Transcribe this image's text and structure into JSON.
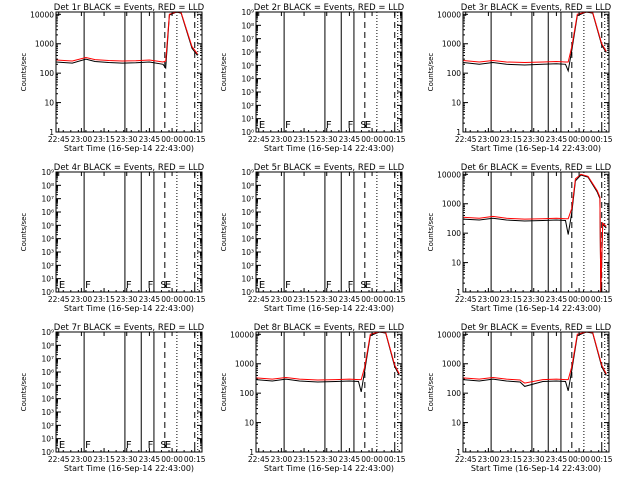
{
  "figure": {
    "background": "#ffffff",
    "axis_color": "#000000",
    "events_color": "#000000",
    "lld_color": "#ff0000"
  },
  "chart_data": [
    {
      "type": "line",
      "title": "Det 1r BLACK = Events, RED = LLD",
      "xlabel": "Start Time (16-Sep-14 22:43:00)",
      "ylabel": "Counts/sec",
      "yscale": "log",
      "ylim": [
        1,
        12000
      ],
      "xlim": [
        22.72,
        24.33
      ],
      "xticks": [
        22.75,
        23.0,
        23.25,
        23.5,
        23.75,
        24.0,
        24.25
      ],
      "xticklabels": [
        "22:45",
        "23:00",
        "23:15",
        "23:30",
        "23:45",
        "00:00",
        "00:15"
      ],
      "yticks": [
        1,
        10,
        100,
        1000,
        10000
      ],
      "yticklabels": [
        "1",
        "10",
        "100",
        "1000",
        "10000"
      ],
      "solid_lines": [
        23.03,
        23.48,
        23.66,
        23.8
      ],
      "dashed_lines": [
        23.92,
        24.25
      ],
      "dotted_lines": [
        24.02,
        24.25
      ],
      "markers": [],
      "series": [
        {
          "role": "events",
          "x": [
            22.72,
            22.9,
            23.05,
            23.15,
            23.3,
            23.45,
            23.6,
            23.75,
            23.9,
            23.93,
            23.97,
            24.05,
            24.1,
            24.22,
            24.28
          ],
          "y": [
            240,
            220,
            300,
            250,
            230,
            220,
            225,
            240,
            200,
            150,
            9500,
            12000,
            11000,
            700,
            400
          ]
        },
        {
          "role": "lld",
          "x": [
            22.72,
            22.9,
            23.05,
            23.15,
            23.3,
            23.45,
            23.6,
            23.75,
            23.9,
            23.93,
            23.97,
            24.05,
            24.1,
            24.22,
            24.28
          ],
          "y": [
            280,
            260,
            340,
            290,
            270,
            260,
            265,
            280,
            240,
            260,
            10000,
            12000,
            11500,
            800,
            450
          ]
        }
      ]
    },
    {
      "type": "line",
      "title": "Det 2r BLACK = Events, RED = LLD",
      "xlabel": "Start Time (16-Sep-14 22:43:00)",
      "ylabel": "Counts/sec",
      "yscale": "log",
      "ylim": [
        1,
        1000000000
      ],
      "xlim": [
        22.72,
        24.33
      ],
      "xticks": [
        22.75,
        23.0,
        23.25,
        23.5,
        23.75,
        24.0,
        24.25
      ],
      "xticklabels": [
        "22:45",
        "23:00",
        "23:15",
        "23:30",
        "23:45",
        "00:00",
        "00:15"
      ],
      "yticks": [
        1,
        10,
        100,
        1000,
        10000,
        100000,
        1000000,
        10000000,
        100000000,
        1000000000
      ],
      "yticklabels": [
        "10⁰",
        "10¹",
        "10²",
        "10³",
        "10⁴",
        "10⁵",
        "10⁶",
        "10⁷",
        "10⁸",
        "10⁹"
      ],
      "solid_lines": [
        23.03,
        23.48,
        23.66,
        23.8
      ],
      "dashed_lines": [
        23.92,
        24.25
      ],
      "dotted_lines": [
        24.02,
        24.25
      ],
      "markers": [
        {
          "x": 22.74,
          "text": "E"
        },
        {
          "x": 23.03,
          "text": "F"
        },
        {
          "x": 23.48,
          "text": "F"
        },
        {
          "x": 23.72,
          "text": "F"
        },
        {
          "x": 23.86,
          "text": "S"
        },
        {
          "x": 23.91,
          "text": "E"
        }
      ],
      "series": []
    },
    {
      "type": "line",
      "title": "Det 3r BLACK = Events, RED = LLD",
      "xlabel": "Start Time (16-Sep-14 22:43:00)",
      "ylabel": "Counts/sec",
      "yscale": "log",
      "ylim": [
        1,
        12000
      ],
      "xlim": [
        22.72,
        24.33
      ],
      "xticks": [
        22.75,
        23.0,
        23.25,
        23.5,
        23.75,
        24.0,
        24.25
      ],
      "xticklabels": [
        "22:45",
        "23:00",
        "23:15",
        "23:30",
        "23:45",
        "00:00",
        "00:15"
      ],
      "yticks": [
        1,
        10,
        100,
        1000,
        10000
      ],
      "yticklabels": [
        "1",
        "10",
        "100",
        "1000",
        "10000"
      ],
      "solid_lines": [
        23.03,
        23.48,
        23.66,
        23.8
      ],
      "dashed_lines": [
        23.92,
        24.25
      ],
      "dotted_lines": [
        24.02,
        24.25
      ],
      "markers": [],
      "series": [
        {
          "role": "events",
          "x": [
            22.72,
            22.9,
            23.05,
            23.2,
            23.4,
            23.6,
            23.75,
            23.85,
            23.88,
            23.92,
            23.98,
            24.08,
            24.15,
            24.25,
            24.3
          ],
          "y": [
            230,
            200,
            230,
            200,
            190,
            200,
            210,
            200,
            120,
            600,
            9000,
            12000,
            11000,
            900,
            500
          ]
        },
        {
          "role": "lld",
          "x": [
            22.72,
            22.9,
            23.05,
            23.2,
            23.4,
            23.6,
            23.75,
            23.85,
            23.88,
            23.92,
            23.98,
            24.08,
            24.15,
            24.25,
            24.3
          ],
          "y": [
            270,
            240,
            270,
            240,
            230,
            240,
            250,
            240,
            240,
            800,
            10000,
            12000,
            11500,
            1000,
            550
          ]
        }
      ]
    },
    {
      "type": "line",
      "title": "Det 4r BLACK = Events, RED = LLD",
      "xlabel": "Start Time (16-Sep-14 22:43:00)",
      "ylabel": "Counts/sec",
      "yscale": "log",
      "ylim": [
        1,
        1000000000
      ],
      "xlim": [
        22.72,
        24.33
      ],
      "xticks": [
        22.75,
        23.0,
        23.25,
        23.5,
        23.75,
        24.0,
        24.25
      ],
      "xticklabels": [
        "22:45",
        "23:00",
        "23:15",
        "23:30",
        "23:45",
        "00:00",
        "00:15"
      ],
      "yticks": [
        1,
        10,
        100,
        1000,
        10000,
        100000,
        1000000,
        10000000,
        100000000,
        1000000000
      ],
      "yticklabels": [
        "10⁰",
        "10¹",
        "10²",
        "10³",
        "10⁴",
        "10⁵",
        "10⁶",
        "10⁷",
        "10⁸",
        "10⁹"
      ],
      "solid_lines": [
        23.03,
        23.48,
        23.66,
        23.8
      ],
      "dashed_lines": [
        23.92,
        24.25
      ],
      "dotted_lines": [
        24.02,
        24.25
      ],
      "markers": [
        {
          "x": 22.74,
          "text": "E"
        },
        {
          "x": 23.03,
          "text": "F"
        },
        {
          "x": 23.48,
          "text": "F"
        },
        {
          "x": 23.72,
          "text": "F"
        },
        {
          "x": 23.86,
          "text": "S"
        },
        {
          "x": 23.91,
          "text": "E"
        }
      ],
      "series": []
    },
    {
      "type": "line",
      "title": "Det 5r BLACK = Events, RED = LLD",
      "xlabel": "Start Time (16-Sep-14 22:43:00)",
      "ylabel": "Counts/sec",
      "yscale": "log",
      "ylim": [
        1,
        1000000000
      ],
      "xlim": [
        22.72,
        24.33
      ],
      "xticks": [
        22.75,
        23.0,
        23.25,
        23.5,
        23.75,
        24.0,
        24.25
      ],
      "xticklabels": [
        "22:45",
        "23:00",
        "23:15",
        "23:30",
        "23:45",
        "00:00",
        "00:15"
      ],
      "yticks": [
        1,
        10,
        100,
        1000,
        10000,
        100000,
        1000000,
        10000000,
        100000000,
        1000000000
      ],
      "yticklabels": [
        "10⁰",
        "10¹",
        "10²",
        "10³",
        "10⁴",
        "10⁵",
        "10⁶",
        "10⁷",
        "10⁸",
        "10⁹"
      ],
      "solid_lines": [
        23.03,
        23.48,
        23.66,
        23.8
      ],
      "dashed_lines": [
        23.92,
        24.25
      ],
      "dotted_lines": [
        24.02,
        24.25
      ],
      "markers": [
        {
          "x": 22.74,
          "text": "E"
        },
        {
          "x": 23.03,
          "text": "F"
        },
        {
          "x": 23.48,
          "text": "F"
        },
        {
          "x": 23.72,
          "text": "F"
        },
        {
          "x": 23.86,
          "text": "S"
        },
        {
          "x": 23.91,
          "text": "E"
        }
      ],
      "series": []
    },
    {
      "type": "line",
      "title": "Det 6r BLACK = Events, RED = LLD",
      "xlabel": "Start Time (16-Sep-14 22:43:00)",
      "ylabel": "Counts/sec",
      "yscale": "log",
      "ylim": [
        1,
        12000
      ],
      "xlim": [
        22.72,
        24.33
      ],
      "xticks": [
        22.75,
        23.0,
        23.25,
        23.5,
        23.75,
        24.0,
        24.25
      ],
      "xticklabels": [
        "22:45",
        "23:00",
        "23:15",
        "23:30",
        "23:45",
        "00:00",
        "00:15"
      ],
      "yticks": [
        1,
        10,
        100,
        1000,
        10000
      ],
      "yticklabels": [
        "1",
        "10",
        "100",
        "1000",
        "10000"
      ],
      "solid_lines": [
        23.03,
        23.48,
        23.66,
        23.8
      ],
      "dashed_lines": [
        23.92,
        24.25
      ],
      "dotted_lines": [
        24.02,
        24.25
      ],
      "markers": [],
      "series": [
        {
          "role": "events",
          "x": [
            22.72,
            22.9,
            23.05,
            23.2,
            23.4,
            23.6,
            23.75,
            23.85,
            23.88,
            23.92,
            23.96,
            24.02,
            24.1,
            24.2,
            24.23,
            24.24,
            24.26,
            24.3
          ],
          "y": [
            300,
            280,
            320,
            280,
            260,
            270,
            280,
            270,
            90,
            500,
            6000,
            9500,
            8000,
            2500,
            1500,
            1,
            200,
            150
          ]
        },
        {
          "role": "lld",
          "x": [
            22.72,
            22.9,
            23.05,
            23.2,
            23.4,
            23.6,
            23.75,
            23.85,
            23.88,
            23.92,
            23.96,
            24.02,
            24.1,
            24.2,
            24.23,
            24.24,
            24.26,
            24.3
          ],
          "y": [
            350,
            320,
            370,
            320,
            300,
            310,
            320,
            310,
            310,
            700,
            7000,
            10000,
            8500,
            2800,
            1700,
            1,
            220,
            170
          ]
        }
      ]
    },
    {
      "type": "line",
      "title": "Det 7r BLACK = Events, RED = LLD",
      "xlabel": "Start Time (16-Sep-14 22:43:00)",
      "ylabel": "Counts/sec",
      "yscale": "log",
      "ylim": [
        1,
        1000000000
      ],
      "xlim": [
        22.72,
        24.33
      ],
      "xticks": [
        22.75,
        23.0,
        23.25,
        23.5,
        23.75,
        24.0,
        24.25
      ],
      "xticklabels": [
        "22:45",
        "23:00",
        "23:15",
        "23:30",
        "23:45",
        "00:00",
        "00:15"
      ],
      "yticks": [
        1,
        10,
        100,
        1000,
        10000,
        100000,
        1000000,
        10000000,
        100000000,
        1000000000
      ],
      "yticklabels": [
        "10⁰",
        "10¹",
        "10²",
        "10³",
        "10⁴",
        "10⁵",
        "10⁶",
        "10⁷",
        "10⁸",
        "10⁹"
      ],
      "solid_lines": [
        23.03,
        23.48,
        23.66,
        23.8
      ],
      "dashed_lines": [
        23.92,
        24.25
      ],
      "dotted_lines": [
        24.02,
        24.25
      ],
      "markers": [
        {
          "x": 22.74,
          "text": "E"
        },
        {
          "x": 23.03,
          "text": "F"
        },
        {
          "x": 23.48,
          "text": "F"
        },
        {
          "x": 23.72,
          "text": "F"
        },
        {
          "x": 23.86,
          "text": "S"
        },
        {
          "x": 23.91,
          "text": "E"
        }
      ],
      "series": []
    },
    {
      "type": "line",
      "title": "Det 8r BLACK = Events, RED = LLD",
      "xlabel": "Start Time (16-Sep-14 22:43:00)",
      "ylabel": "Counts/sec",
      "yscale": "log",
      "ylim": [
        1,
        12000
      ],
      "xlim": [
        22.72,
        24.33
      ],
      "xticks": [
        22.75,
        23.0,
        23.25,
        23.5,
        23.75,
        24.0,
        24.25
      ],
      "xticklabels": [
        "22:45",
        "23:00",
        "23:15",
        "23:30",
        "23:45",
        "00:00",
        "00:15"
      ],
      "yticks": [
        1,
        10,
        100,
        1000,
        10000
      ],
      "yticklabels": [
        "1",
        "10",
        "100",
        "1000",
        "10000"
      ],
      "solid_lines": [
        23.03,
        23.48,
        23.66,
        23.8
      ],
      "dashed_lines": [
        23.92,
        24.25
      ],
      "dotted_lines": [
        24.02,
        24.25
      ],
      "markers": [],
      "series": [
        {
          "role": "events",
          "x": [
            22.72,
            22.9,
            23.05,
            23.2,
            23.4,
            23.6,
            23.75,
            23.85,
            23.88,
            23.92,
            23.98,
            24.08,
            24.15,
            24.25,
            24.3
          ],
          "y": [
            290,
            260,
            300,
            260,
            240,
            250,
            260,
            250,
            110,
            600,
            9000,
            12000,
            11000,
            800,
            400
          ]
        },
        {
          "role": "lld",
          "x": [
            22.72,
            22.9,
            23.05,
            23.2,
            23.4,
            23.6,
            23.75,
            23.85,
            23.88,
            23.92,
            23.98,
            24.08,
            24.15,
            24.25,
            24.3
          ],
          "y": [
            330,
            300,
            340,
            300,
            280,
            290,
            300,
            290,
            290,
            800,
            10000,
            12000,
            11500,
            900,
            450
          ]
        }
      ]
    },
    {
      "type": "line",
      "title": "Det 9r BLACK = Events, RED = LLD",
      "xlabel": "Start Time (16-Sep-14 22:43:00)",
      "ylabel": "Counts/sec",
      "yscale": "log",
      "ylim": [
        1,
        12000
      ],
      "xlim": [
        22.72,
        24.33
      ],
      "xticks": [
        22.75,
        23.0,
        23.25,
        23.5,
        23.75,
        24.0,
        24.25
      ],
      "xticklabels": [
        "22:45",
        "23:00",
        "23:15",
        "23:30",
        "23:45",
        "00:00",
        "00:15"
      ],
      "yticks": [
        1,
        10,
        100,
        1000,
        10000
      ],
      "yticklabels": [
        "1",
        "10",
        "100",
        "1000",
        "10000"
      ],
      "solid_lines": [
        23.03,
        23.48,
        23.66,
        23.8
      ],
      "dashed_lines": [
        23.92,
        24.25
      ],
      "dotted_lines": [
        24.02,
        24.25
      ],
      "markers": [],
      "series": [
        {
          "role": "events",
          "x": [
            22.72,
            22.9,
            23.05,
            23.2,
            23.35,
            23.4,
            23.6,
            23.75,
            23.85,
            23.88,
            23.92,
            23.98,
            24.08,
            24.15,
            24.25,
            24.3
          ],
          "y": [
            290,
            260,
            300,
            260,
            240,
            170,
            250,
            260,
            250,
            120,
            600,
            9000,
            12000,
            11000,
            800,
            400
          ]
        },
        {
          "role": "lld",
          "x": [
            22.72,
            22.9,
            23.05,
            23.2,
            23.35,
            23.4,
            23.6,
            23.75,
            23.85,
            23.88,
            23.92,
            23.98,
            24.08,
            24.15,
            24.25,
            24.3
          ],
          "y": [
            330,
            300,
            340,
            300,
            280,
            220,
            290,
            300,
            290,
            290,
            800,
            10000,
            12000,
            11500,
            900,
            450
          ]
        }
      ]
    }
  ]
}
